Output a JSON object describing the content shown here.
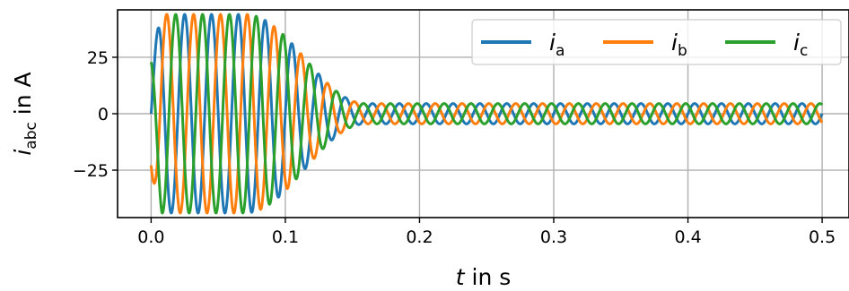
{
  "chart_data": {
    "type": "line",
    "xlabel": {
      "var": "t",
      "rest": " in s"
    },
    "ylabel": {
      "var": "i",
      "sub": "abc",
      "rest": " in A"
    },
    "xlim": [
      -0.025,
      0.52
    ],
    "ylim": [
      -46,
      46
    ],
    "xticks": [
      0.0,
      0.1,
      0.2,
      0.3,
      0.4,
      0.5
    ],
    "xtick_labels": [
      "0.0",
      "0.1",
      "0.2",
      "0.3",
      "0.4",
      "0.5"
    ],
    "yticks": [
      25,
      0,
      -25
    ],
    "ytick_labels": [
      "25",
      "0",
      "−25"
    ],
    "grid": true,
    "legend_position": "top-right",
    "signal": {
      "frequency_hz": 50,
      "startup_peak_amplitude_A": 44,
      "steady_state_amplitude_A": 4.5,
      "decay_start_s": 0.07,
      "settled_by_s": 0.16,
      "duration_s": [
        0.0,
        0.5
      ]
    },
    "series": [
      {
        "name": "i",
        "sub": "a",
        "color": "#1f77b4",
        "phase_deg": 0
      },
      {
        "name": "i",
        "sub": "b",
        "color": "#ff7f0e",
        "phase_deg": -120
      },
      {
        "name": "i",
        "sub": "c",
        "color": "#2ca02c",
        "phase_deg": 120
      }
    ]
  }
}
